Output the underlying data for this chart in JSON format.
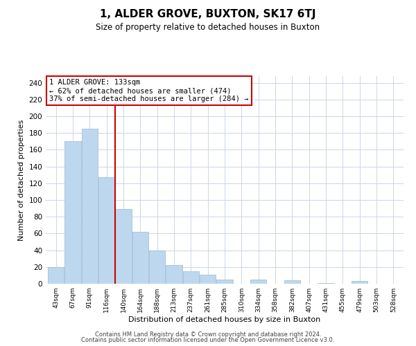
{
  "title": "1, ALDER GROVE, BUXTON, SK17 6TJ",
  "subtitle": "Size of property relative to detached houses in Buxton",
  "xlabel": "Distribution of detached houses by size in Buxton",
  "ylabel": "Number of detached properties",
  "bar_color": "#bdd7ee",
  "bar_edge_color": "#9ab8d0",
  "categories": [
    "43sqm",
    "67sqm",
    "91sqm",
    "116sqm",
    "140sqm",
    "164sqm",
    "188sqm",
    "213sqm",
    "237sqm",
    "261sqm",
    "285sqm",
    "310sqm",
    "334sqm",
    "358sqm",
    "382sqm",
    "407sqm",
    "431sqm",
    "455sqm",
    "479sqm",
    "503sqm",
    "528sqm"
  ],
  "values": [
    20,
    170,
    185,
    127,
    89,
    62,
    40,
    22,
    15,
    11,
    5,
    0,
    5,
    0,
    4,
    0,
    1,
    0,
    3,
    0,
    0
  ],
  "vline_color": "#cc0000",
  "annotation_title": "1 ALDER GROVE: 133sqm",
  "annotation_line1": "← 62% of detached houses are smaller (474)",
  "annotation_line2": "37% of semi-detached houses are larger (284) →",
  "annotation_box_color": "#ffffff",
  "annotation_box_edge": "#cc0000",
  "footer1": "Contains HM Land Registry data © Crown copyright and database right 2024.",
  "footer2": "Contains public sector information licensed under the Open Government Licence v3.0.",
  "background_color": "#ffffff",
  "grid_color": "#ccd6e8",
  "ylim": [
    0,
    248
  ],
  "yticks": [
    0,
    20,
    40,
    60,
    80,
    100,
    120,
    140,
    160,
    180,
    200,
    220,
    240
  ]
}
